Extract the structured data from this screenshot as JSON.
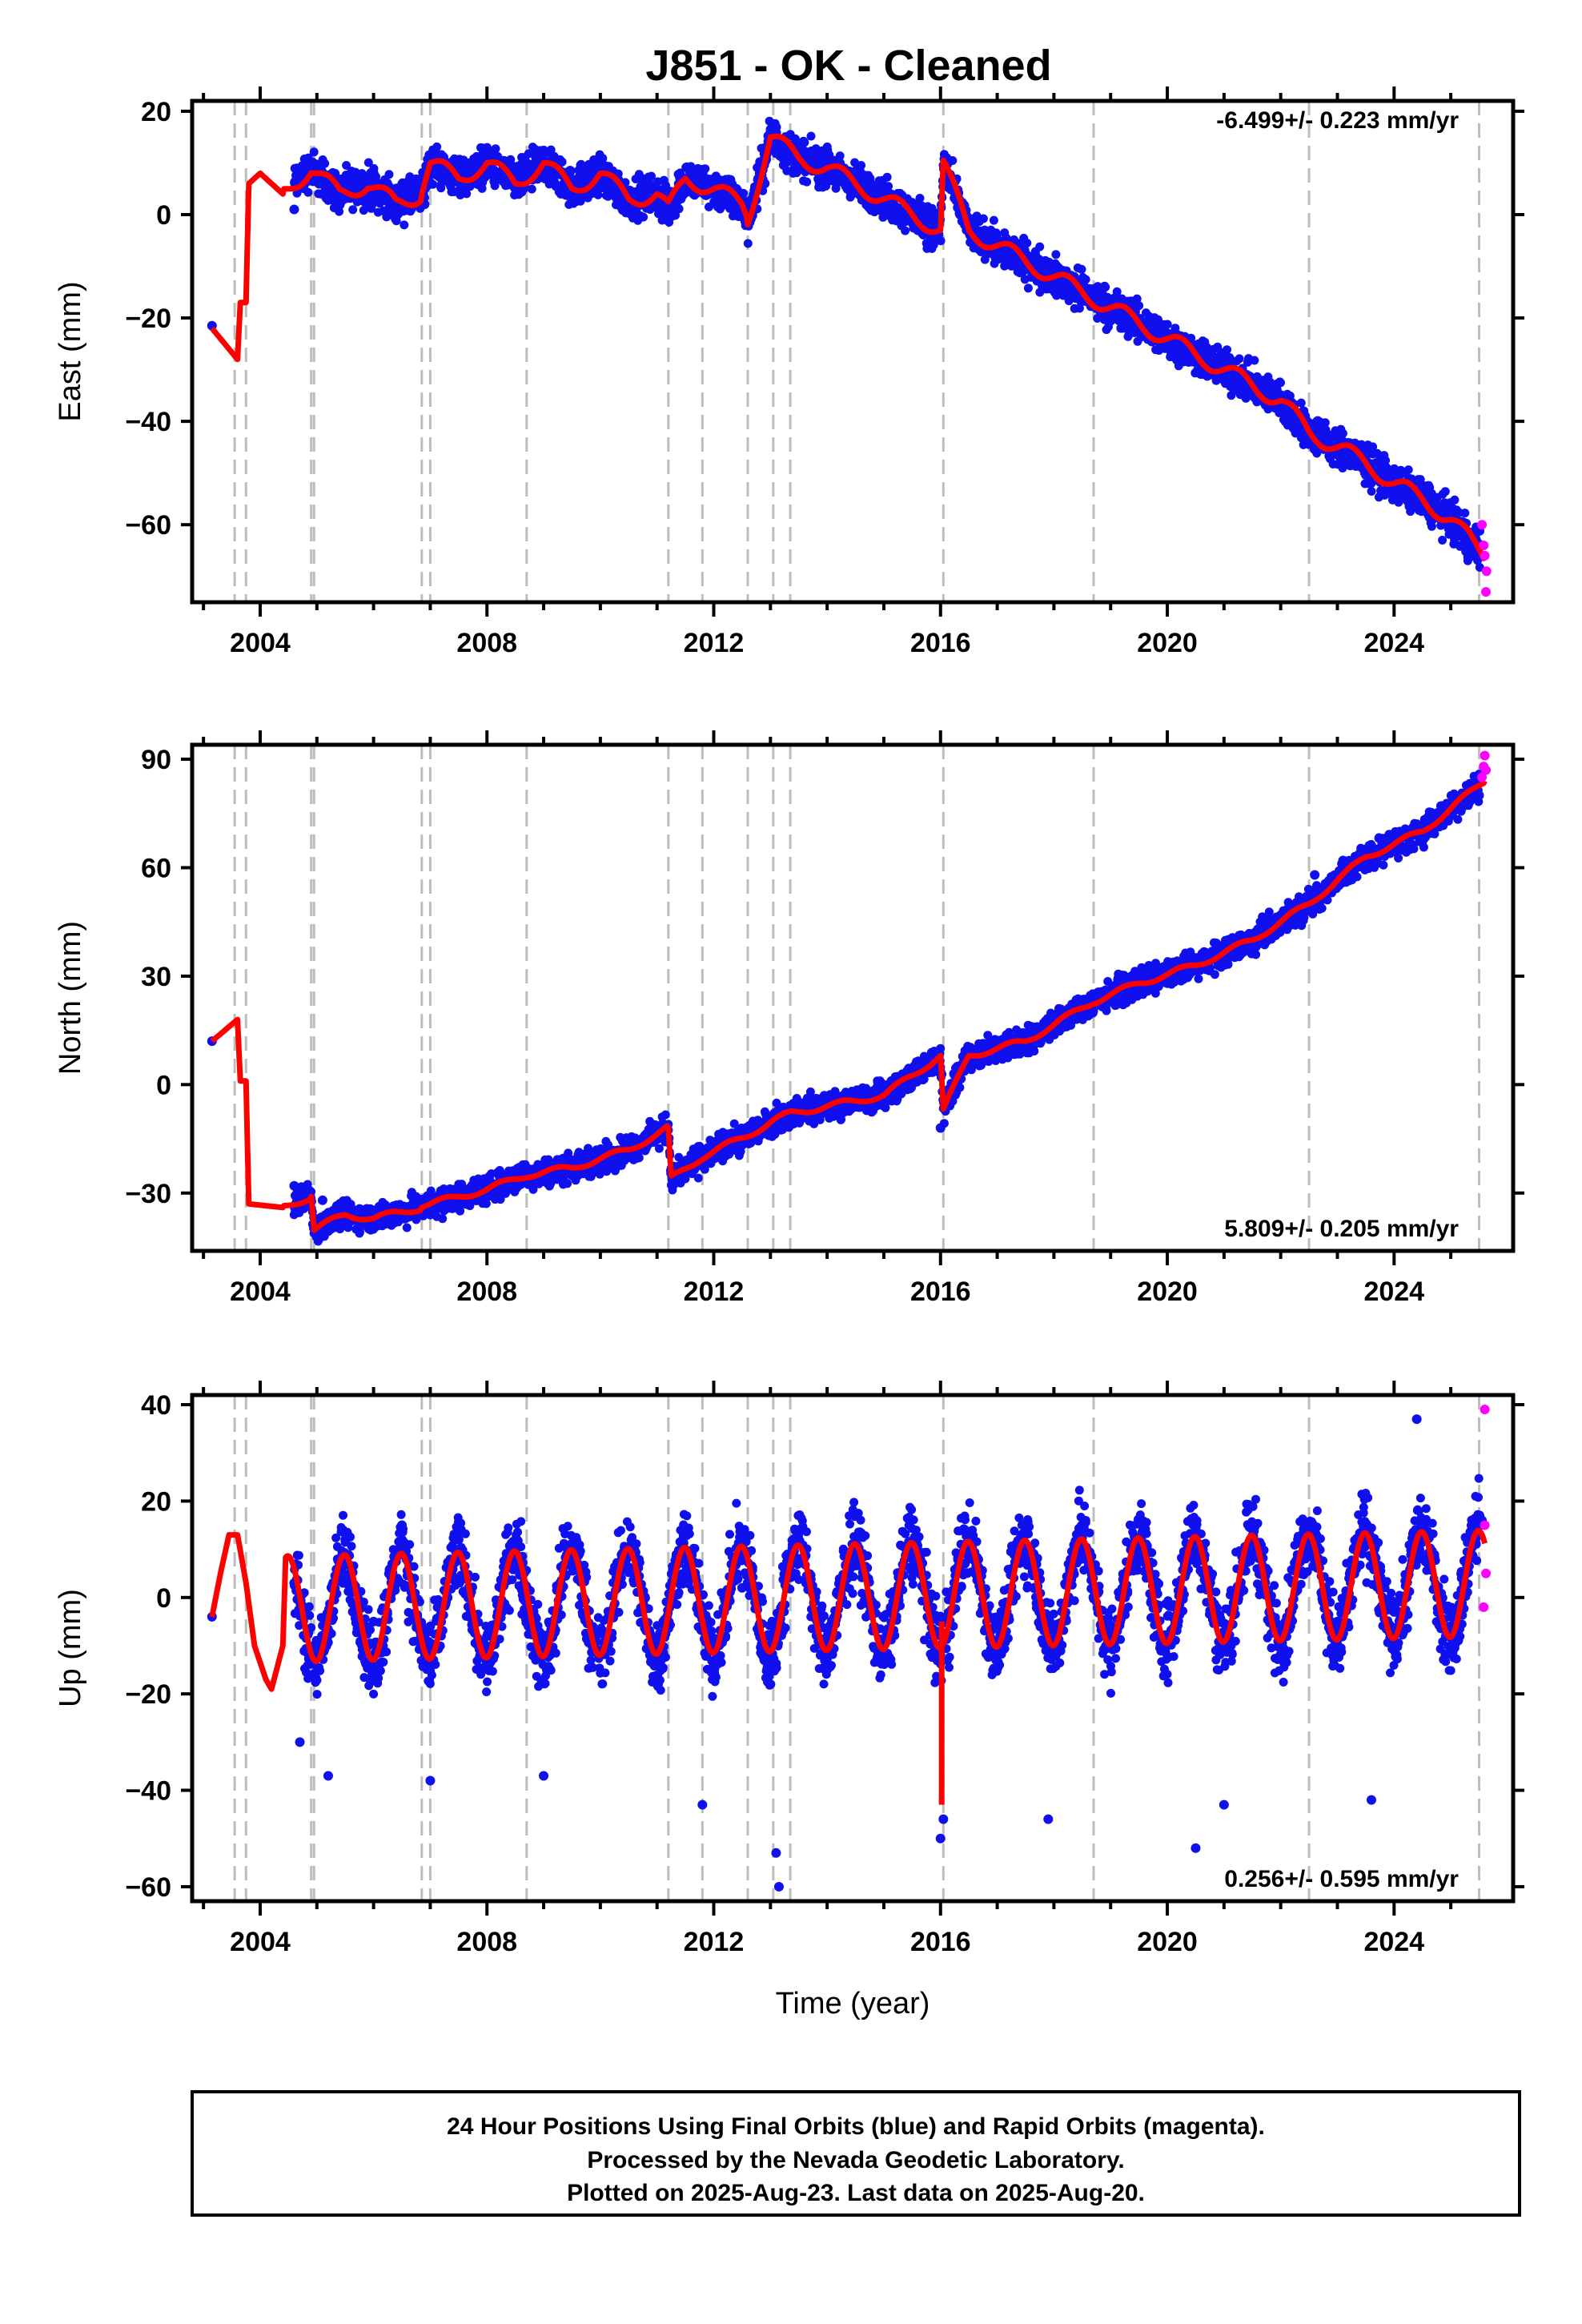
{
  "chart_data": [
    {
      "type": "scatter",
      "panel": "east",
      "title": "J851  - OK - Cleaned",
      "ylabel": "East (mm)",
      "xlabel": "",
      "xlim": [
        2002.8,
        2026.1
      ],
      "ylim": [
        -75,
        22
      ],
      "yticks": [
        "20",
        "0",
        "−20",
        "−40",
        "−60"
      ],
      "ytick_values": [
        20,
        0,
        -20,
        -40,
        -60
      ],
      "xticks": [
        "2004",
        "2008",
        "2012",
        "2016",
        "2020",
        "2024"
      ],
      "xtick_values": [
        2004,
        2008,
        2012,
        2016,
        2020,
        2024
      ],
      "rate_text": "-6.499+/- 0.223 mm/yr",
      "rate_position": "top-right",
      "grid": false,
      "event_lines": [
        2003.55,
        2003.75,
        2004.9,
        2004.95,
        2006.85,
        2007.0,
        2008.7,
        2011.2,
        2011.8,
        2012.6,
        2013.05,
        2013.35,
        2016.05,
        2018.7,
        2022.5,
        2025.5
      ],
      "series": [
        {
          "label": "Final Orbits",
          "color": "#1010ee",
          "kind": "points",
          "x": [
            2003.15,
            2004.6,
            2004.9,
            2005.4,
            2005.9,
            2006.4,
            2006.9,
            2007.4,
            2007.9,
            2008.4,
            2008.9,
            2009.4,
            2009.9,
            2010.4,
            2010.9,
            2011.2,
            2011.4,
            2011.9,
            2012.4,
            2012.65,
            2012.9,
            2013.1,
            2013.4,
            2013.9,
            2014.4,
            2014.9,
            2015.4,
            2015.9,
            2016.4,
            2016.9,
            2017.4,
            2017.9,
            2018.4,
            2018.9,
            2019.4,
            2019.9,
            2020.4,
            2020.9,
            2021.4,
            2021.9,
            2022.4,
            2022.9,
            2023.4,
            2023.9,
            2024.4,
            2024.9,
            2025.4
          ],
          "y": [
            -21.5,
            1,
            8,
            3,
            2,
            5,
            2,
            9,
            8,
            10,
            7,
            8,
            6,
            5,
            3,
            3,
            6,
            4,
            5,
            0,
            6,
            15,
            12,
            11,
            8,
            5,
            3,
            0,
            -1,
            -5,
            -8,
            -11,
            -14,
            -18,
            -20,
            -22,
            -26,
            -28,
            -31,
            -34,
            -38,
            -44,
            -48,
            -52,
            -55,
            -59,
            -64
          ]
        },
        {
          "label": "Rapid Orbits",
          "color": "#ff00ff",
          "kind": "points",
          "x": [
            2025.55,
            2025.58,
            2025.6,
            2025.62,
            2025.63
          ],
          "y": [
            -60,
            -64,
            -66,
            -73,
            -69
          ]
        },
        {
          "label": "Model fit",
          "color": "#ff0000",
          "kind": "line",
          "x": [
            2003.15,
            2003.6,
            2003.65,
            2003.75,
            2003.8,
            2004.0,
            2004.4,
            2004.9,
            2005.4,
            2005.9,
            2006.4,
            2006.85,
            2007.0,
            2007.5,
            2008.0,
            2008.5,
            2009.0,
            2009.5,
            2010.0,
            2010.5,
            2011.0,
            2011.2,
            2011.5,
            2012.0,
            2012.5,
            2012.6,
            2013.0,
            2013.5,
            2014.0,
            2014.5,
            2015.0,
            2015.5,
            2016.0,
            2016.05,
            2016.5,
            2017.0,
            2017.5,
            2018.0,
            2018.5,
            2019.0,
            2019.5,
            2020.0,
            2020.5,
            2021.0,
            2021.5,
            2022.0,
            2022.5,
            2023.0,
            2023.5,
            2024.0,
            2024.5,
            2025.0,
            2025.6
          ],
          "y": [
            -22,
            -28,
            -17,
            -17,
            6,
            8,
            4,
            9,
            4,
            6,
            2,
            4,
            10,
            7,
            10,
            6,
            10,
            5,
            8,
            3,
            4,
            1,
            7,
            5,
            2,
            -1,
            15,
            11,
            9,
            6,
            3,
            0,
            -3,
            10,
            -3,
            -6,
            -9,
            -12,
            -15,
            -18,
            -21,
            -24,
            -27,
            -30,
            -33,
            -36,
            -42,
            -45,
            -48,
            -52,
            -55,
            -59,
            -66
          ]
        }
      ]
    },
    {
      "type": "scatter",
      "panel": "north",
      "title": "",
      "ylabel": "North (mm)",
      "xlabel": "",
      "xlim": [
        2002.8,
        2026.1
      ],
      "ylim": [
        -46,
        94
      ],
      "yticks": [
        "90",
        "60",
        "30",
        "0",
        "−30"
      ],
      "ytick_values": [
        90,
        60,
        30,
        0,
        -30
      ],
      "xticks": [
        "2004",
        "2008",
        "2012",
        "2016",
        "2020",
        "2024"
      ],
      "xtick_values": [
        2004,
        2008,
        2012,
        2016,
        2020,
        2024
      ],
      "rate_text": "5.809+/- 0.205 mm/yr",
      "rate_position": "bottom-right",
      "grid": false,
      "event_lines": [
        2003.55,
        2003.75,
        2004.9,
        2004.95,
        2006.85,
        2007.0,
        2008.7,
        2011.2,
        2011.8,
        2012.6,
        2013.05,
        2013.35,
        2016.05,
        2018.7,
        2022.5,
        2025.5
      ],
      "series": [
        {
          "label": "Final Orbits",
          "color": "#1010ee",
          "kind": "points",
          "x": [
            2003.15,
            2004.6,
            2005.1,
            2005.6,
            2006.1,
            2006.6,
            2007.1,
            2007.6,
            2008.1,
            2008.6,
            2009.1,
            2009.6,
            2010.1,
            2010.6,
            2011.1,
            2011.3,
            2011.6,
            2012.1,
            2012.6,
            2013.1,
            2013.6,
            2014.1,
            2014.6,
            2015.1,
            2015.6,
            2016.0,
            2016.3,
            2016.6,
            2017.1,
            2017.6,
            2018.1,
            2018.6,
            2019.1,
            2019.6,
            2020.1,
            2020.6,
            2021.1,
            2021.6,
            2022.1,
            2022.6,
            2023.1,
            2023.6,
            2024.1,
            2024.6,
            2025.1,
            2025.5
          ],
          "y": [
            12,
            -28,
            -32,
            -36,
            -35,
            -34,
            -33,
            -29,
            -28,
            -26,
            -24,
            -22,
            -20,
            -16,
            -13,
            -24,
            -20,
            -17,
            -13,
            -10,
            -8,
            -6,
            -2,
            0,
            2,
            -12,
            5,
            8,
            12,
            16,
            19,
            22,
            26,
            28,
            32,
            35,
            40,
            43,
            47,
            58,
            62,
            66,
            70,
            74,
            77,
            80
          ]
        },
        {
          "label": "Rapid Orbits",
          "color": "#ff00ff",
          "kind": "points",
          "x": [
            2025.55,
            2025.58,
            2025.6,
            2025.62
          ],
          "y": [
            85,
            88,
            91,
            87
          ]
        },
        {
          "label": "Model fit",
          "color": "#ff0000",
          "kind": "line",
          "x": [
            2003.15,
            2003.6,
            2003.65,
            2003.75,
            2003.8,
            2004.4,
            2004.9,
            2004.95,
            2005.5,
            2006.0,
            2006.85,
            2007.0,
            2008.0,
            2008.7,
            2009.5,
            2010.5,
            2011.2,
            2011.25,
            2011.8,
            2012.6,
            2013.05,
            2013.35,
            2014.0,
            2015.0,
            2016.0,
            2016.05,
            2016.5,
            2017.5,
            2018.7,
            2019.5,
            2020.5,
            2021.5,
            2022.5,
            2023.5,
            2024.5,
            2025.6
          ],
          "y": [
            12,
            18,
            1,
            1,
            -33,
            -34,
            -31,
            -40,
            -36,
            -37,
            -34,
            -33,
            -29,
            -25,
            -23,
            -18,
            -12,
            -26,
            -20,
            -14,
            -10,
            -8,
            -6,
            -3,
            8,
            -7,
            8,
            12,
            23,
            28,
            33,
            40,
            50,
            63,
            70,
            84
          ]
        }
      ]
    },
    {
      "type": "scatter",
      "panel": "up",
      "title": "",
      "ylabel": "Up (mm)",
      "xlabel": "Time (year)",
      "xlim": [
        2002.8,
        2026.1
      ],
      "ylim": [
        -63,
        42
      ],
      "yticks": [
        "40",
        "20",
        "0",
        "−20",
        "−40",
        "−60"
      ],
      "ytick_values": [
        40,
        20,
        0,
        -20,
        -40,
        -60
      ],
      "xticks": [
        "2004",
        "2008",
        "2012",
        "2016",
        "2020",
        "2024"
      ],
      "xtick_values": [
        2004,
        2008,
        2012,
        2016,
        2020,
        2024
      ],
      "rate_text": "0.256+/- 0.595 mm/yr",
      "rate_position": "bottom-right",
      "grid": false,
      "event_lines": [
        2003.55,
        2003.75,
        2004.9,
        2004.95,
        2006.85,
        2007.0,
        2008.7,
        2011.2,
        2011.8,
        2012.6,
        2013.05,
        2013.35,
        2016.05,
        2018.7,
        2022.5,
        2025.5
      ],
      "seasonal_amplitude": 11,
      "series": [
        {
          "label": "Final Orbits",
          "color": "#1010ee",
          "kind": "points",
          "x": [
            2003.15,
            2004.6,
            2005.1,
            2005.5,
            2006.0,
            2006.5,
            2007.0,
            2007.5,
            2008.0,
            2008.5,
            2009.0,
            2009.5,
            2010.0,
            2010.5,
            2011.0,
            2011.5,
            2012.0,
            2012.5,
            2013.0,
            2013.5,
            2014.0,
            2014.5,
            2015.0,
            2015.5,
            2016.0,
            2016.5,
            2017.0,
            2017.5,
            2018.0,
            2018.5,
            2019.0,
            2019.5,
            2020.0,
            2020.5,
            2021.0,
            2021.5,
            2022.0,
            2022.5,
            2023.0,
            2023.5,
            2024.0,
            2024.5,
            2025.0,
            2025.55,
            2004.7,
            2005.2,
            2007.0,
            2009.0,
            2011.8,
            2013.1,
            2013.15,
            2016.0,
            2016.05,
            2017.9,
            2020.5,
            2021.0,
            2023.6,
            2024.4
          ],
          "y": [
            -4,
            3,
            -8,
            12,
            -5,
            15,
            -6,
            12,
            -8,
            10,
            -10,
            8,
            -12,
            6,
            -14,
            4,
            -16,
            2,
            -18,
            8,
            -10,
            8,
            -10,
            8,
            -12,
            8,
            -9,
            8,
            -10,
            8,
            -9,
            11,
            -8,
            11,
            -9,
            11,
            -10,
            14,
            -5,
            15,
            -3,
            15,
            -4,
            16,
            -30,
            -37,
            -38,
            -37,
            -43,
            -53,
            -60,
            -50,
            -46,
            -46,
            -52,
            -43,
            -42,
            37
          ]
        },
        {
          "label": "Rapid Orbits",
          "color": "#ff00ff",
          "kind": "points",
          "x": [
            2025.6,
            2025.6,
            2025.62,
            2025.58
          ],
          "y": [
            39,
            15,
            5,
            -2
          ]
        },
        {
          "label": "Model fit",
          "color": "#ff0000",
          "kind": "line",
          "x": [
            2003.15,
            2003.3,
            2003.45,
            2003.6,
            2003.75,
            2003.9,
            2004.1,
            2004.2,
            2004.4
          ],
          "y": [
            -4,
            5,
            13,
            13,
            3,
            -10,
            -17,
            -19,
            -10
          ]
        }
      ]
    }
  ],
  "footer": {
    "line1": "24 Hour Positions Using Final Orbits (blue) and Rapid Orbits (magenta).",
    "line2": "Processed by the Nevada Geodetic Laboratory.",
    "line3": "Plotted on 2025-Aug-23. Last data on 2025-Aug-20."
  }
}
